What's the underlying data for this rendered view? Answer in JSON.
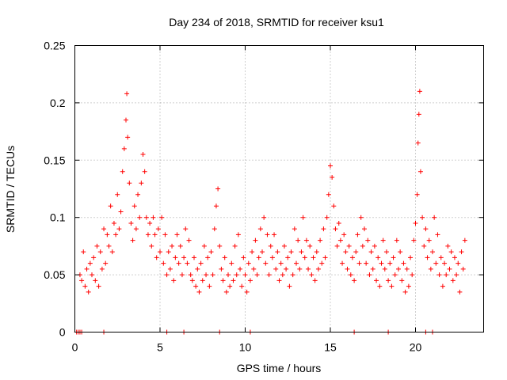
{
  "chart_data": {
    "type": "scatter",
    "title": "Day 234 of 2018, SRMTID for receiver ksu1",
    "xlabel": "GPS time / hours",
    "ylabel": "SRMTID / TECUs",
    "xlim": [
      0,
      24
    ],
    "ylim": [
      0,
      0.25
    ],
    "xticks": [
      0,
      5,
      10,
      15,
      20
    ],
    "xtick_labels": [
      "0",
      "5",
      "10",
      "15",
      "20"
    ],
    "yticks": [
      0,
      0.05,
      0.1,
      0.15,
      0.2,
      0.25
    ],
    "ytick_labels": [
      "0",
      "0.05",
      "0.1",
      "0.15",
      "0.2",
      "0.25"
    ],
    "grid": true,
    "marker": "+",
    "color": "#ff0000",
    "series": [
      {
        "name": "SRMTID",
        "points": [
          [
            0.1,
            0.0
          ],
          [
            0.2,
            0.0
          ],
          [
            0.3,
            0.0
          ],
          [
            0.4,
            0.0
          ],
          [
            1.7,
            0.0
          ],
          [
            5.4,
            0.0
          ],
          [
            6.4,
            0.0
          ],
          [
            8.5,
            0.0
          ],
          [
            10.3,
            0.0
          ],
          [
            16.4,
            0.0
          ],
          [
            18.4,
            0.0
          ],
          [
            20.6,
            0.0
          ],
          [
            21.0,
            0.0
          ],
          [
            0.3,
            0.05
          ],
          [
            0.4,
            0.045
          ],
          [
            0.5,
            0.07
          ],
          [
            0.6,
            0.04
          ],
          [
            0.7,
            0.055
          ],
          [
            0.8,
            0.035
          ],
          [
            0.9,
            0.06
          ],
          [
            1.0,
            0.05
          ],
          [
            1.1,
            0.065
          ],
          [
            1.2,
            0.045
          ],
          [
            1.3,
            0.075
          ],
          [
            1.4,
            0.04
          ],
          [
            1.5,
            0.07
          ],
          [
            1.6,
            0.055
          ],
          [
            1.7,
            0.09
          ],
          [
            1.8,
            0.06
          ],
          [
            1.9,
            0.085
          ],
          [
            2.0,
            0.075
          ],
          [
            2.1,
            0.11
          ],
          [
            2.2,
            0.07
          ],
          [
            2.3,
            0.095
          ],
          [
            2.4,
            0.085
          ],
          [
            2.5,
            0.12
          ],
          [
            2.6,
            0.09
          ],
          [
            2.7,
            0.105
          ],
          [
            2.8,
            0.14
          ],
          [
            2.9,
            0.16
          ],
          [
            3.0,
            0.185
          ],
          [
            3.05,
            0.208
          ],
          [
            3.1,
            0.17
          ],
          [
            3.2,
            0.13
          ],
          [
            3.3,
            0.095
          ],
          [
            3.4,
            0.08
          ],
          [
            3.5,
            0.11
          ],
          [
            3.6,
            0.09
          ],
          [
            3.7,
            0.12
          ],
          [
            3.8,
            0.1
          ],
          [
            3.9,
            0.13
          ],
          [
            4.0,
            0.155
          ],
          [
            4.1,
            0.14
          ],
          [
            4.2,
            0.1
          ],
          [
            4.3,
            0.085
          ],
          [
            4.4,
            0.095
          ],
          [
            4.5,
            0.075
          ],
          [
            4.6,
            0.1
          ],
          [
            4.7,
            0.085
          ],
          [
            4.8,
            0.065
          ],
          [
            4.9,
            0.09
          ],
          [
            5.0,
            0.07
          ],
          [
            5.1,
            0.1
          ],
          [
            5.2,
            0.06
          ],
          [
            5.3,
            0.085
          ],
          [
            5.4,
            0.05
          ],
          [
            5.5,
            0.07
          ],
          [
            5.6,
            0.055
          ],
          [
            5.7,
            0.075
          ],
          [
            5.8,
            0.045
          ],
          [
            5.9,
            0.065
          ],
          [
            6.0,
            0.085
          ],
          [
            6.1,
            0.06
          ],
          [
            6.2,
            0.075
          ],
          [
            6.3,
            0.05
          ],
          [
            6.4,
            0.065
          ],
          [
            6.5,
            0.09
          ],
          [
            6.6,
            0.06
          ],
          [
            6.7,
            0.08
          ],
          [
            6.8,
            0.05
          ],
          [
            6.9,
            0.045
          ],
          [
            7.0,
            0.065
          ],
          [
            7.1,
            0.04
          ],
          [
            7.2,
            0.055
          ],
          [
            7.3,
            0.035
          ],
          [
            7.4,
            0.06
          ],
          [
            7.5,
            0.045
          ],
          [
            7.6,
            0.075
          ],
          [
            7.7,
            0.05
          ],
          [
            7.8,
            0.065
          ],
          [
            7.9,
            0.04
          ],
          [
            8.0,
            0.07
          ],
          [
            8.1,
            0.05
          ],
          [
            8.2,
            0.09
          ],
          [
            8.3,
            0.11
          ],
          [
            8.4,
            0.125
          ],
          [
            8.5,
            0.075
          ],
          [
            8.6,
            0.055
          ],
          [
            8.7,
            0.045
          ],
          [
            8.8,
            0.065
          ],
          [
            8.9,
            0.035
          ],
          [
            9.0,
            0.05
          ],
          [
            9.1,
            0.04
          ],
          [
            9.2,
            0.06
          ],
          [
            9.3,
            0.045
          ],
          [
            9.4,
            0.075
          ],
          [
            9.5,
            0.05
          ],
          [
            9.6,
            0.085
          ],
          [
            9.7,
            0.055
          ],
          [
            9.8,
            0.04
          ],
          [
            9.9,
            0.065
          ],
          [
            10.0,
            0.05
          ],
          [
            10.1,
            0.035
          ],
          [
            10.2,
            0.06
          ],
          [
            10.3,
            0.045
          ],
          [
            10.4,
            0.07
          ],
          [
            10.5,
            0.055
          ],
          [
            10.6,
            0.08
          ],
          [
            10.7,
            0.05
          ],
          [
            10.8,
            0.065
          ],
          [
            10.9,
            0.09
          ],
          [
            11.0,
            0.07
          ],
          [
            11.1,
            0.1
          ],
          [
            11.2,
            0.06
          ],
          [
            11.3,
            0.085
          ],
          [
            11.4,
            0.05
          ],
          [
            11.5,
            0.075
          ],
          [
            11.6,
            0.065
          ],
          [
            11.7,
            0.085
          ],
          [
            11.8,
            0.055
          ],
          [
            11.9,
            0.07
          ],
          [
            12.0,
            0.045
          ],
          [
            12.1,
            0.06
          ],
          [
            12.2,
            0.05
          ],
          [
            12.3,
            0.075
          ],
          [
            12.4,
            0.055
          ],
          [
            12.5,
            0.065
          ],
          [
            12.6,
            0.04
          ],
          [
            12.7,
            0.07
          ],
          [
            12.8,
            0.05
          ],
          [
            12.9,
            0.09
          ],
          [
            13.0,
            0.06
          ],
          [
            13.1,
            0.08
          ],
          [
            13.2,
            0.055
          ],
          [
            13.3,
            0.07
          ],
          [
            13.4,
            0.1
          ],
          [
            13.5,
            0.065
          ],
          [
            13.6,
            0.08
          ],
          [
            13.7,
            0.055
          ],
          [
            13.8,
            0.075
          ],
          [
            13.9,
            0.05
          ],
          [
            14.0,
            0.065
          ],
          [
            14.1,
            0.045
          ],
          [
            14.2,
            0.07
          ],
          [
            14.3,
            0.055
          ],
          [
            14.4,
            0.08
          ],
          [
            14.5,
            0.06
          ],
          [
            14.6,
            0.09
          ],
          [
            14.7,
            0.065
          ],
          [
            14.8,
            0.1
          ],
          [
            14.9,
            0.12
          ],
          [
            15.0,
            0.145
          ],
          [
            15.1,
            0.135
          ],
          [
            15.2,
            0.11
          ],
          [
            15.3,
            0.09
          ],
          [
            15.4,
            0.075
          ],
          [
            15.5,
            0.095
          ],
          [
            15.6,
            0.08
          ],
          [
            15.7,
            0.06
          ],
          [
            15.8,
            0.085
          ],
          [
            15.9,
            0.07
          ],
          [
            16.0,
            0.055
          ],
          [
            16.1,
            0.075
          ],
          [
            16.2,
            0.05
          ],
          [
            16.3,
            0.065
          ],
          [
            16.4,
            0.045
          ],
          [
            16.5,
            0.07
          ],
          [
            16.6,
            0.085
          ],
          [
            16.7,
            0.06
          ],
          [
            16.8,
            0.1
          ],
          [
            16.9,
            0.075
          ],
          [
            17.0,
            0.09
          ],
          [
            17.1,
            0.06
          ],
          [
            17.2,
            0.08
          ],
          [
            17.3,
            0.05
          ],
          [
            17.4,
            0.07
          ],
          [
            17.5,
            0.055
          ],
          [
            17.6,
            0.075
          ],
          [
            17.7,
            0.045
          ],
          [
            17.8,
            0.065
          ],
          [
            17.9,
            0.04
          ],
          [
            18.0,
            0.06
          ],
          [
            18.1,
            0.08
          ],
          [
            18.2,
            0.055
          ],
          [
            18.3,
            0.07
          ],
          [
            18.4,
            0.045
          ],
          [
            18.5,
            0.06
          ],
          [
            18.6,
            0.04
          ],
          [
            18.7,
            0.065
          ],
          [
            18.8,
            0.05
          ],
          [
            18.9,
            0.08
          ],
          [
            19.0,
            0.055
          ],
          [
            19.1,
            0.07
          ],
          [
            19.2,
            0.045
          ],
          [
            19.3,
            0.06
          ],
          [
            19.4,
            0.035
          ],
          [
            19.5,
            0.055
          ],
          [
            19.6,
            0.04
          ],
          [
            19.7,
            0.065
          ],
          [
            19.8,
            0.05
          ],
          [
            19.9,
            0.08
          ],
          [
            20.0,
            0.095
          ],
          [
            20.1,
            0.12
          ],
          [
            20.15,
            0.165
          ],
          [
            20.2,
            0.19
          ],
          [
            20.25,
            0.21
          ],
          [
            20.3,
            0.14
          ],
          [
            20.4,
            0.1
          ],
          [
            20.5,
            0.075
          ],
          [
            20.6,
            0.09
          ],
          [
            20.7,
            0.065
          ],
          [
            20.8,
            0.08
          ],
          [
            20.9,
            0.055
          ],
          [
            21.0,
            0.07
          ],
          [
            21.1,
            0.1
          ],
          [
            21.2,
            0.06
          ],
          [
            21.3,
            0.085
          ],
          [
            21.4,
            0.05
          ],
          [
            21.5,
            0.065
          ],
          [
            21.6,
            0.04
          ],
          [
            21.7,
            0.06
          ],
          [
            21.8,
            0.05
          ],
          [
            21.9,
            0.075
          ],
          [
            22.0,
            0.055
          ],
          [
            22.1,
            0.07
          ],
          [
            22.2,
            0.045
          ],
          [
            22.3,
            0.065
          ],
          [
            22.4,
            0.05
          ],
          [
            22.5,
            0.06
          ],
          [
            22.6,
            0.035
          ],
          [
            22.7,
            0.07
          ],
          [
            22.8,
            0.055
          ],
          [
            22.9,
            0.08
          ]
        ]
      }
    ]
  }
}
